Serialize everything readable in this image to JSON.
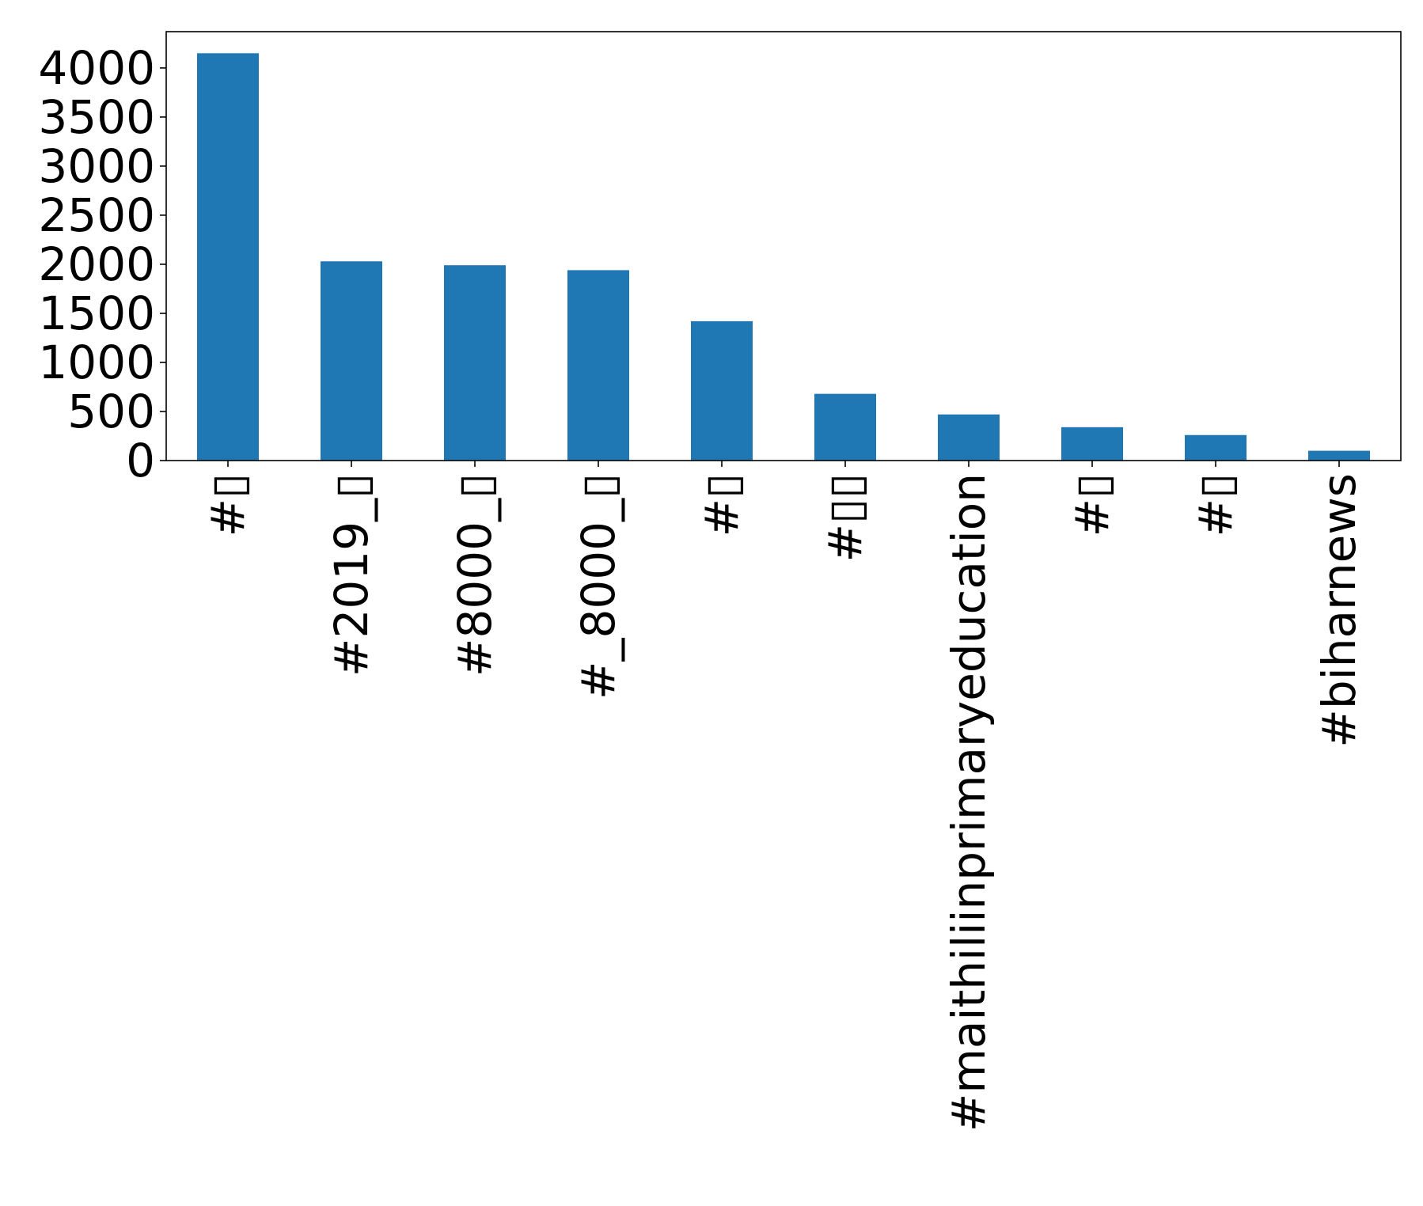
{
  "chart_data": {
    "type": "bar",
    "title": "",
    "xlabel": "",
    "ylabel": "",
    "categories": [
      "#▯",
      "#2019_▯",
      "#8000_▯",
      "#_8000_▯",
      "#▯",
      "#▯▯",
      "#maithiliinprimaryeducation",
      "#▯",
      "#▯",
      "#biharnews"
    ],
    "values": [
      4150,
      2030,
      1990,
      1940,
      1420,
      680,
      470,
      340,
      260,
      100
    ],
    "ylim": [
      0,
      4370
    ],
    "yticks": [
      0,
      500,
      1000,
      1500,
      2000,
      2500,
      3000,
      3500,
      4000
    ],
    "bar_color": "#1f77b4",
    "grid": false,
    "legend": "none"
  }
}
